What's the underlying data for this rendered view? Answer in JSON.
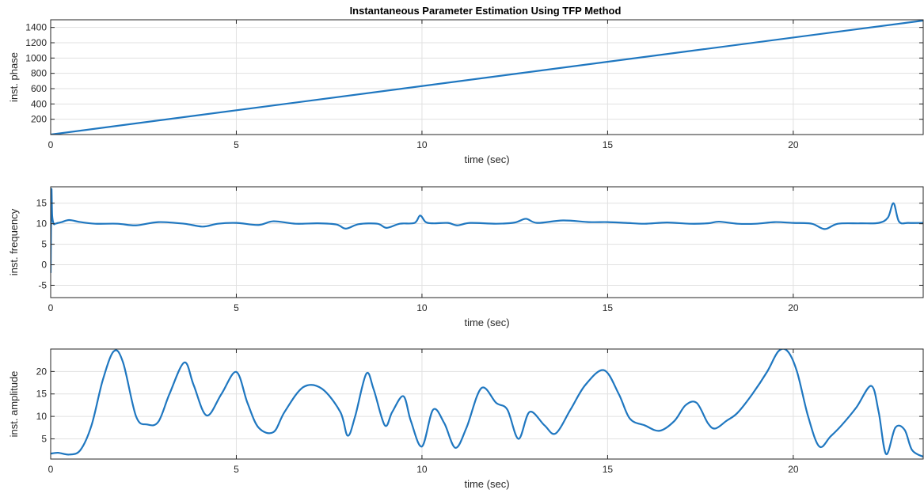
{
  "title": "Instantaneous Parameter Estimation Using TFP Method",
  "colors": {
    "line": "#1f77c0",
    "axes": "#262626",
    "grid": "#e1e1e1"
  },
  "chart_data": [
    {
      "type": "line",
      "name": "phase",
      "title": "Instantaneous Parameter Estimation Using TFP Method",
      "xlabel": "time (sec)",
      "ylabel": "inst. phase",
      "xlim": [
        0,
        23.5
      ],
      "ylim": [
        0,
        1500
      ],
      "xticks": [
        0,
        5,
        10,
        15,
        20
      ],
      "yticks": [
        200,
        400,
        600,
        800,
        1000,
        1200,
        1400
      ],
      "grid": true,
      "x": [
        0,
        23.5
      ],
      "y": [
        0,
        1490
      ]
    },
    {
      "type": "line",
      "name": "frequency",
      "xlabel": "time (sec)",
      "ylabel": "inst. frequency",
      "xlim": [
        0,
        23.5
      ],
      "ylim": [
        -8,
        19
      ],
      "xticks": [
        0,
        5,
        10,
        15,
        20
      ],
      "yticks": [
        -5,
        0,
        5,
        10,
        15
      ],
      "grid": true,
      "x": [
        0,
        0.02,
        0.04,
        0.08,
        0.12,
        0.2,
        0.3,
        0.5,
        0.8,
        1.2,
        1.8,
        2.3,
        2.9,
        3.6,
        4.1,
        4.5,
        5.0,
        5.6,
        6.0,
        6.6,
        7.2,
        7.7,
        7.95,
        8.3,
        8.8,
        9.05,
        9.4,
        9.8,
        9.95,
        10.1,
        10.3,
        10.7,
        10.95,
        11.3,
        12.0,
        12.5,
        12.8,
        13.1,
        13.8,
        14.5,
        15.0,
        15.5,
        16.0,
        16.6,
        17.2,
        17.7,
        18.0,
        18.5,
        19.0,
        19.5,
        20.0,
        20.5,
        20.85,
        21.2,
        21.8,
        22.3,
        22.55,
        22.7,
        22.85,
        23.1,
        23.5
      ],
      "y": [
        -2,
        18,
        12,
        10,
        10,
        10.2,
        10.4,
        10.9,
        10.4,
        10.0,
        10.0,
        9.6,
        10.4,
        10.0,
        9.3,
        10.0,
        10.2,
        9.7,
        10.6,
        10.0,
        10.1,
        9.8,
        8.8,
        9.9,
        10.0,
        9.0,
        10.0,
        10.2,
        12.0,
        10.4,
        10.1,
        10.2,
        9.6,
        10.2,
        10.0,
        10.3,
        11.2,
        10.2,
        10.8,
        10.4,
        10.4,
        10.2,
        10.0,
        10.3,
        10.0,
        10.1,
        10.5,
        10.0,
        10.0,
        10.4,
        10.2,
        10.0,
        8.7,
        10.0,
        10.1,
        10.2,
        11.5,
        15.0,
        10.5,
        10.2,
        10.2
      ]
    },
    {
      "type": "line",
      "name": "amplitude",
      "xlabel": "time (sec)",
      "ylabel": "inst. amplitude",
      "xlim": [
        0,
        23.5
      ],
      "ylim": [
        0.5,
        25
      ],
      "xticks": [
        0,
        5,
        10,
        15,
        20
      ],
      "yticks": [
        5,
        10,
        15,
        20
      ],
      "grid": true,
      "x": [
        0,
        0.2,
        0.5,
        0.8,
        1.1,
        1.4,
        1.7,
        1.95,
        2.3,
        2.6,
        2.9,
        3.2,
        3.6,
        3.85,
        4.2,
        4.6,
        5.0,
        5.3,
        5.6,
        6.0,
        6.3,
        6.8,
        7.3,
        7.8,
        8.0,
        8.2,
        8.5,
        8.7,
        9.0,
        9.2,
        9.5,
        9.7,
        10.0,
        10.3,
        10.6,
        10.9,
        11.2,
        11.6,
        12.0,
        12.3,
        12.6,
        12.9,
        13.3,
        13.6,
        14.0,
        14.4,
        14.9,
        15.3,
        15.6,
        16.0,
        16.4,
        16.8,
        17.1,
        17.4,
        17.7,
        17.9,
        18.2,
        18.5,
        18.9,
        19.3,
        19.6,
        19.85,
        20.1,
        20.4,
        20.7,
        21.0,
        21.3,
        21.7,
        22.1,
        22.3,
        22.5,
        22.75,
        23.0,
        23.2,
        23.5
      ],
      "y": [
        1.7,
        1.9,
        1.5,
        2.5,
        8,
        18,
        24.5,
        22,
        10,
        8.2,
        8.8,
        15,
        22,
        17,
        10.2,
        15,
        19.9,
        13,
        7.5,
        6.5,
        11,
        16.5,
        16.2,
        11,
        5.7,
        10,
        19.5,
        16,
        8,
        11,
        14.5,
        9,
        3.3,
        11.5,
        8.5,
        3,
        7.5,
        16.3,
        13,
        11.5,
        5,
        11,
        8,
        6.2,
        11.5,
        17,
        20.3,
        15,
        9.5,
        8,
        6.8,
        9,
        12.5,
        13,
        8.5,
        7.3,
        9,
        10.8,
        15,
        20,
        24.5,
        24.5,
        20,
        10,
        3.3,
        5.5,
        8,
        12,
        16.8,
        11,
        1.6,
        7.5,
        7,
        2.5,
        1
      ]
    }
  ]
}
